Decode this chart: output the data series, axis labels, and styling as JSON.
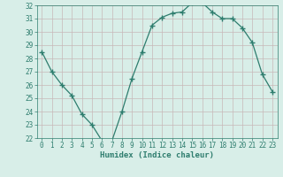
{
  "x": [
    0,
    1,
    2,
    3,
    4,
    5,
    6,
    7,
    8,
    9,
    10,
    11,
    12,
    13,
    14,
    15,
    16,
    17,
    18,
    19,
    20,
    21,
    22,
    23
  ],
  "y": [
    28.5,
    27.0,
    26.0,
    25.2,
    23.8,
    23.0,
    21.8,
    21.8,
    24.0,
    26.5,
    28.5,
    30.5,
    31.1,
    31.4,
    31.5,
    32.2,
    32.2,
    31.5,
    31.0,
    31.0,
    30.3,
    29.2,
    26.8,
    25.5
  ],
  "xlabel": "Humidex (Indice chaleur)",
  "ylim": [
    22,
    32
  ],
  "xlim": [
    -0.5,
    23.5
  ],
  "yticks": [
    22,
    23,
    24,
    25,
    26,
    27,
    28,
    29,
    30,
    31,
    32
  ],
  "xticks": [
    0,
    1,
    2,
    3,
    4,
    5,
    6,
    7,
    8,
    9,
    10,
    11,
    12,
    13,
    14,
    15,
    16,
    17,
    18,
    19,
    20,
    21,
    22,
    23
  ],
  "line_color": "#2e7d6e",
  "marker_color": "#2e7d6e",
  "bg_color": "#d8eee8",
  "grid_color": "#c8b8b8",
  "tick_label_color": "#2e7d6e",
  "axis_label_color": "#2e7d6e",
  "tick_fontsize": 5.5,
  "xlabel_fontsize": 6.5
}
